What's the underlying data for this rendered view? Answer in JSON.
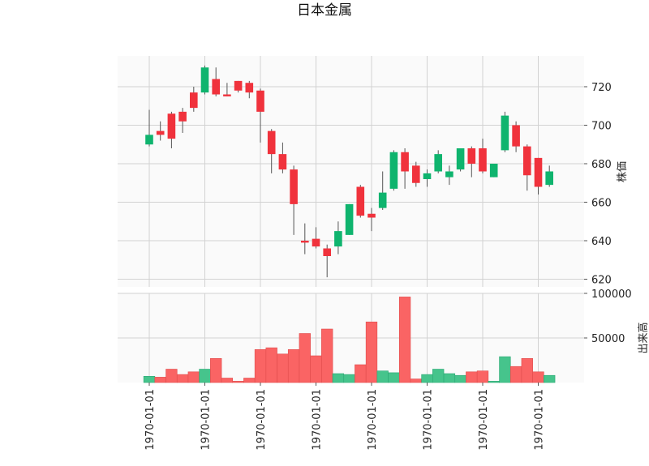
{
  "chart_data": {
    "type": "candlestick",
    "title": "日本金属",
    "colors": {
      "up": "#0fb46e",
      "down": "#f0323c",
      "volume_up": "#46c48c",
      "volume_down": "#fa6464",
      "panel_bg": "#fafafa",
      "grid": "#d2d2d2"
    },
    "price_panel": {
      "ylabel": "株価",
      "ylim": [
        616,
        736
      ],
      "yticks": [
        620,
        640,
        660,
        680,
        700,
        720
      ]
    },
    "volume_panel": {
      "ylabel": "出来高",
      "ylim": [
        0,
        100000
      ],
      "yticks": [
        50000,
        100000
      ],
      "ytick_labels": [
        "50000",
        "100000"
      ]
    },
    "x_tick_labels": [
      "1970-01-01",
      "1970-01-01",
      "1970-01-01",
      "1970-01-01",
      "1970-01-01",
      "1970-01-01",
      "1970-01-01",
      "1970-01-01"
    ],
    "x_tick_positions": [
      0,
      5,
      10,
      15,
      20,
      25,
      30,
      35
    ],
    "grid": true,
    "candles": [
      {
        "open": 690,
        "high": 708,
        "low": 689,
        "close": 695,
        "volume": 7000
      },
      {
        "open": 697,
        "high": 702,
        "low": 692,
        "close": 695,
        "volume": 6000
      },
      {
        "open": 706,
        "high": 707,
        "low": 688,
        "close": 693,
        "volume": 15000
      },
      {
        "open": 707,
        "high": 709,
        "low": 696,
        "close": 702,
        "volume": 9000
      },
      {
        "open": 717,
        "high": 720,
        "low": 707,
        "close": 709,
        "volume": 12000
      },
      {
        "open": 717,
        "high": 731,
        "low": 716,
        "close": 730,
        "volume": 15000
      },
      {
        "open": 724,
        "high": 730,
        "low": 715,
        "close": 716,
        "volume": 27000
      },
      {
        "open": 716,
        "high": 722,
        "low": 715,
        "close": 715,
        "volume": 5000
      },
      {
        "open": 723,
        "high": 723,
        "low": 717,
        "close": 718,
        "volume": 1500
      },
      {
        "open": 722,
        "high": 723,
        "low": 714,
        "close": 717,
        "volume": 5000
      },
      {
        "open": 718,
        "high": 719,
        "low": 691,
        "close": 707,
        "volume": 37000
      },
      {
        "open": 697,
        "high": 698,
        "low": 675,
        "close": 685,
        "volume": 39000
      },
      {
        "open": 685,
        "high": 691,
        "low": 675,
        "close": 677,
        "volume": 32000
      },
      {
        "open": 677,
        "high": 679,
        "low": 643,
        "close": 659,
        "volume": 37000
      },
      {
        "open": 640,
        "high": 649,
        "low": 633,
        "close": 639,
        "volume": 55000
      },
      {
        "open": 641,
        "high": 647,
        "low": 636,
        "close": 637,
        "volume": 30000
      },
      {
        "open": 636,
        "high": 638,
        "low": 621,
        "close": 632,
        "volume": 60000
      },
      {
        "open": 637,
        "high": 650,
        "low": 633,
        "close": 645,
        "volume": 10000
      },
      {
        "open": 643,
        "high": 659,
        "low": 643,
        "close": 659,
        "volume": 9000
      },
      {
        "open": 668,
        "high": 669,
        "low": 652,
        "close": 653,
        "volume": 20000
      },
      {
        "open": 654,
        "high": 657,
        "low": 645,
        "close": 652,
        "volume": 68000
      },
      {
        "open": 657,
        "high": 676,
        "low": 656,
        "close": 665,
        "volume": 13000
      },
      {
        "open": 667,
        "high": 687,
        "low": 666,
        "close": 686,
        "volume": 11000
      },
      {
        "open": 686,
        "high": 688,
        "low": 667,
        "close": 676,
        "volume": 96000
      },
      {
        "open": 679,
        "high": 681,
        "low": 668,
        "close": 670,
        "volume": 4000
      },
      {
        "open": 672,
        "high": 677,
        "low": 668,
        "close": 675,
        "volume": 9000
      },
      {
        "open": 676,
        "high": 687,
        "low": 675,
        "close": 685,
        "volume": 15000
      },
      {
        "open": 673,
        "high": 679,
        "low": 669,
        "close": 676,
        "volume": 10000
      },
      {
        "open": 677,
        "high": 688,
        "low": 676,
        "close": 688,
        "volume": 8000
      },
      {
        "open": 688,
        "high": 689,
        "low": 673,
        "close": 680,
        "volume": 12000
      },
      {
        "open": 688,
        "high": 693,
        "low": 675,
        "close": 676,
        "volume": 13000
      },
      {
        "open": 673,
        "high": 680,
        "low": 673,
        "close": 680,
        "volume": 1500
      },
      {
        "open": 687,
        "high": 707,
        "low": 686,
        "close": 705,
        "volume": 29000
      },
      {
        "open": 700,
        "high": 702,
        "low": 686,
        "close": 689,
        "volume": 18000
      },
      {
        "open": 689,
        "high": 690,
        "low": 666,
        "close": 674,
        "volume": 27000
      },
      {
        "open": 683,
        "high": 683,
        "low": 664,
        "close": 668,
        "volume": 12000
      },
      {
        "open": 669,
        "high": 679,
        "low": 668,
        "close": 676,
        "volume": 8000
      }
    ]
  }
}
